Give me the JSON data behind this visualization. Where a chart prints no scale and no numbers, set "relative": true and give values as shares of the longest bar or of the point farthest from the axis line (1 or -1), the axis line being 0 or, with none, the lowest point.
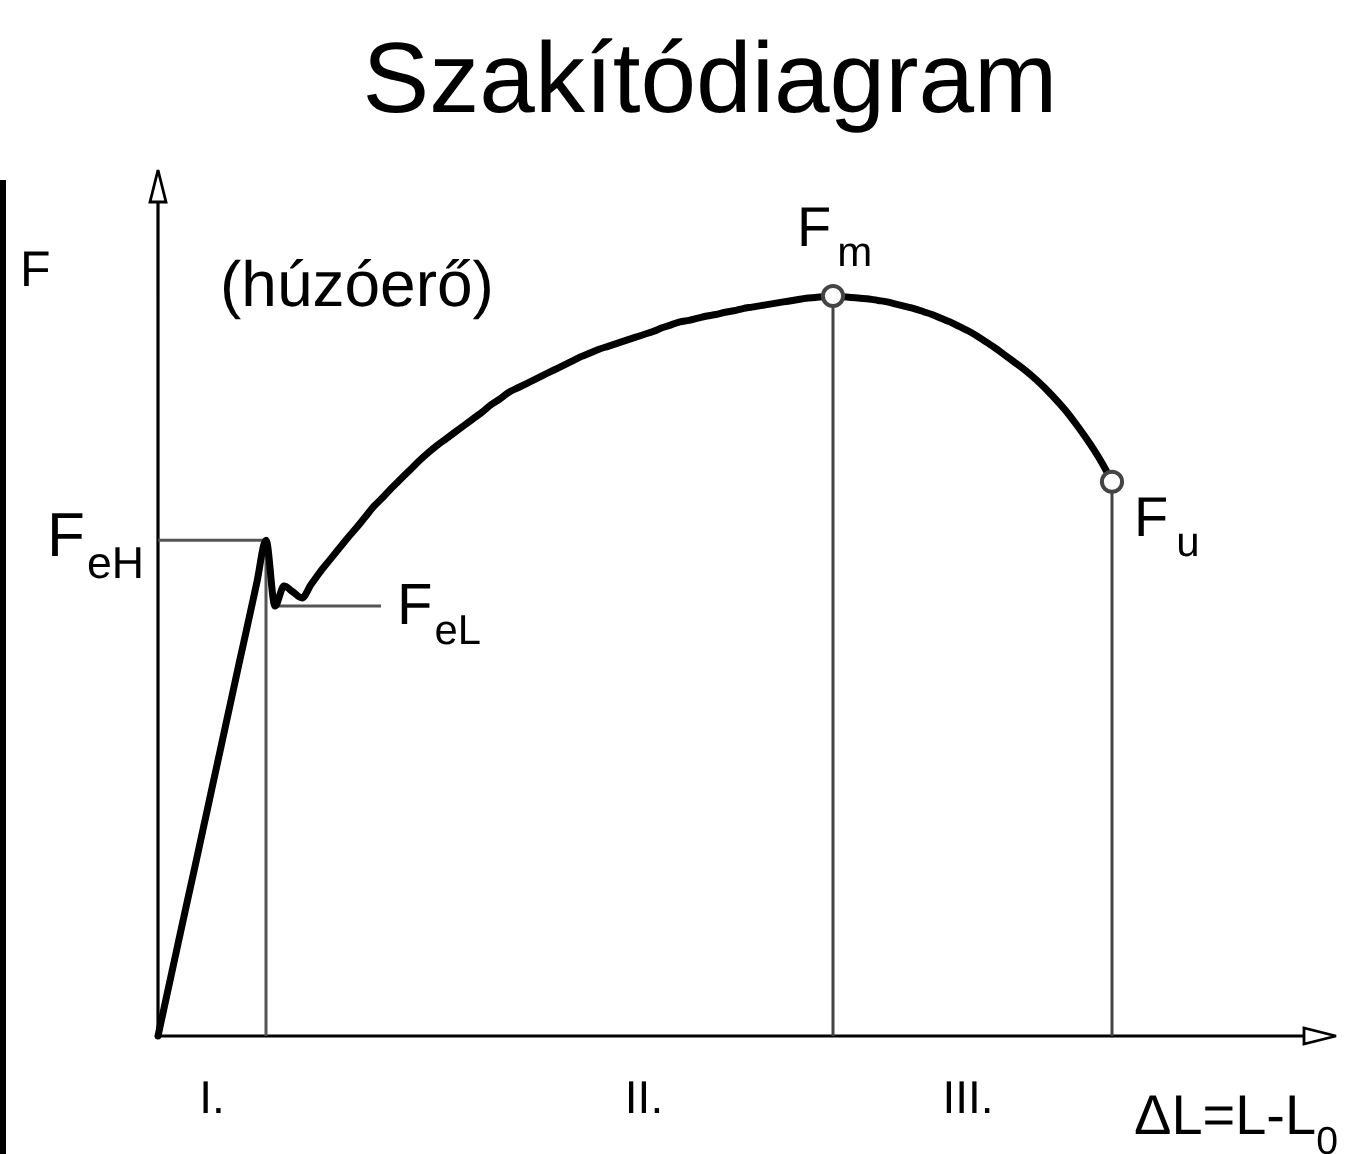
{
  "chart_data": {
    "type": "line",
    "title": "Szakítódiagram",
    "xlabel": "ΔL=L-L$_{0}$",
    "ylabel": "F",
    "relative": true,
    "tick_labels": "x",
    "categories": [
      null,
      null,
      null,
      null,
      null,
      null,
      "I.",
      null,
      null,
      null,
      null,
      null,
      null,
      null,
      null,
      null,
      null,
      null,
      null,
      null,
      null,
      null,
      null,
      null,
      null,
      null,
      null,
      null,
      null,
      null,
      null,
      null,
      null,
      null,
      null,
      null,
      null,
      null,
      null,
      null,
      null,
      null,
      null,
      null,
      null,
      null,
      null,
      null,
      null,
      null,
      null,
      null,
      null,
      null,
      "II.",
      null,
      null,
      null,
      null,
      null,
      null,
      null,
      null,
      null,
      null,
      null,
      null,
      null,
      null,
      null,
      null,
      null,
      null,
      null,
      null,
      null,
      null,
      null,
      null,
      null,
      null,
      null,
      null,
      null,
      null,
      null,
      null,
      null,
      null,
      null,
      "III.",
      null,
      null,
      null,
      null,
      null,
      null,
      null,
      null,
      null,
      null,
      null,
      null,
      null,
      null,
      null,
      null
    ],
    "series": [
      {
        "type": "lollipop",
        "color": "#444444",
        "marker": "circle",
        "values": [
          null,
          null,
          null,
          null,
          null,
          null,
          null,
          null,
          null,
          null,
          null,
          null,
          null,
          null,
          null,
          null,
          null,
          null,
          null,
          null,
          null,
          null,
          null,
          null,
          null,
          null,
          null,
          null,
          null,
          null,
          null,
          null,
          null,
          null,
          null,
          null,
          null,
          null,
          null,
          null,
          null,
          null,
          null,
          null,
          null,
          null,
          null,
          null,
          null,
          null,
          null,
          null,
          null,
          null,
          null,
          null,
          null,
          null,
          null,
          null,
          null,
          null,
          null,
          null,
          null,
          null,
          null,
          null,
          null,
          null,
          null,
          null,
          null,
          null,
          null,
          1,
          null,
          null,
          null,
          null,
          null,
          null,
          null,
          null,
          null,
          null,
          null,
          null,
          null,
          null,
          null,
          null,
          null,
          null,
          null,
          null,
          null,
          null,
          null,
          null,
          null,
          null,
          null,
          null,
          null,
          null,
          0.749
        ]
      },
      {
        "color": "#000000",
        "values": [
          0,
          0.056,
          0.112,
          0.168,
          0.223,
          0.279,
          0.335,
          0.391,
          0.447,
          0.503,
          0.558,
          0.614,
          0.67,
          0.581,
          0.608,
          0.6,
          0.592,
          0.61,
          0.627,
          0.642,
          0.657,
          0.672,
          0.686,
          0.701,
          0.716,
          0.728,
          0.741,
          0.753,
          0.765,
          0.777,
          0.788,
          0.798,
          0.807,
          0.816,
          0.825,
          0.834,
          0.843,
          0.853,
          0.861,
          0.87,
          0.876,
          0.882,
          0.888,
          0.894,
          0.9,
          0.906,
          0.912,
          0.918,
          0.923,
          0.928,
          0.932,
          0.936,
          0.94,
          0.944,
          0.948,
          0.952,
          0.957,
          0.961,
          0.965,
          0.967,
          0.97,
          0.973,
          0.975,
          0.978,
          0.98,
          0.983,
          0.985,
          0.987,
          0.989,
          0.991,
          0.993,
          0.995,
          0.997,
          0.998,
          0.999,
          1,
          0.999,
          0.998,
          0.997,
          0.996,
          0.994,
          0.992,
          0.989,
          0.986,
          0.983,
          0.979,
          0.975,
          0.97,
          0.965,
          0.959,
          0.953,
          0.946,
          0.938,
          0.93,
          0.921,
          0.912,
          0.903,
          0.893,
          0.882,
          0.87,
          0.857,
          0.843,
          0.827,
          0.81,
          0.792,
          0.772,
          0.749
        ]
      }
    ],
    "ref_lines": [
      {
        "axis": "y",
        "value": 0.67,
        "label": "F$_{eH}$",
        "color": "#555555"
      },
      {
        "axis": "y",
        "value": 0.581,
        "label": "F$_{eL}$",
        "color": "#555555"
      }
    ],
    "annotations": [
      "(húzóerő)",
      {
        "text": "F$_{m}$",
        "y": 1
      },
      "F$_{u}$"
    ]
  }
}
